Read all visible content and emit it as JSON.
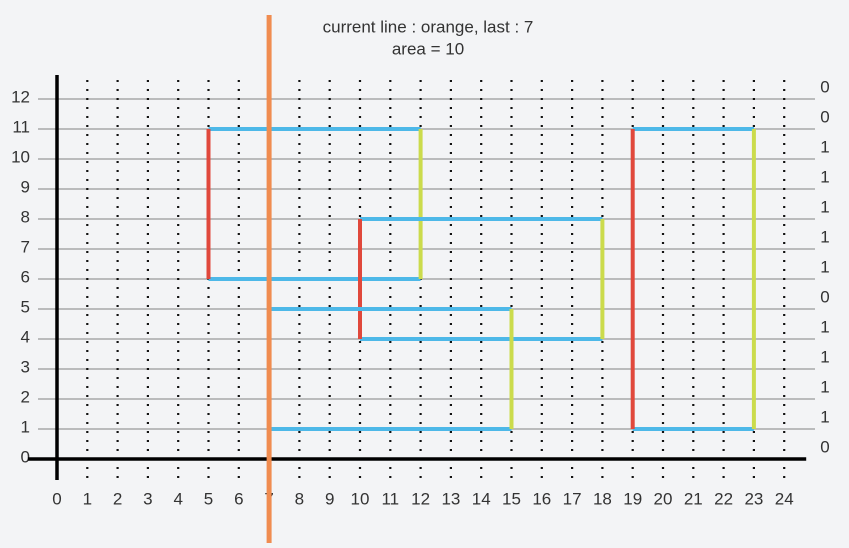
{
  "title": "current line : orange, last : 7",
  "subtitle": "area = 10",
  "xticks": [
    0,
    1,
    2,
    3,
    4,
    5,
    6,
    7,
    8,
    9,
    10,
    11,
    12,
    13,
    14,
    15,
    16,
    17,
    18,
    19,
    20,
    21,
    22,
    23,
    24
  ],
  "yticks": [
    0,
    1,
    2,
    3,
    4,
    5,
    6,
    7,
    8,
    9,
    10,
    11,
    12
  ],
  "counts": [
    0,
    0,
    1,
    1,
    1,
    1,
    1,
    0,
    1,
    1,
    1,
    1,
    0
  ],
  "rectangles": [
    {
      "x1": 5,
      "x2": 12,
      "y1": 6,
      "y2": 11
    },
    {
      "x1": 10,
      "x2": 18,
      "y1": 4,
      "y2": 8
    },
    {
      "x1": 7,
      "x2": 15,
      "y1": 1,
      "y2": 5
    },
    {
      "x1": 19,
      "x2": 23,
      "y1": 1,
      "y2": 11
    }
  ],
  "sweep_x": 7,
  "colors": {
    "top_bottom": "#4db8e8",
    "left": "#e0483c",
    "right": "#cbdb4c",
    "sweep": "#f08c50"
  }
}
